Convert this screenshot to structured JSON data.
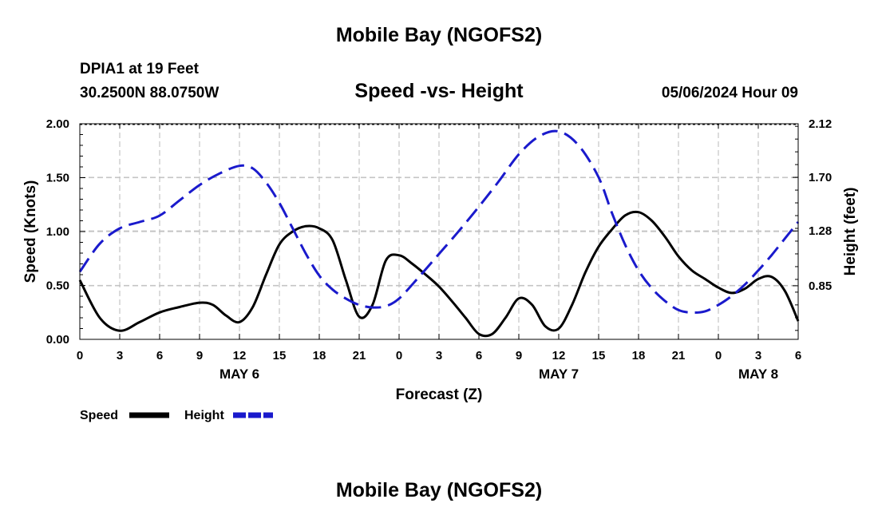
{
  "header": {
    "title": "Mobile Bay (NGOFS2)",
    "station": "DPIA1 at 19 Feet",
    "coords": "30.2500N  88.0750W",
    "subtitle": "Speed -vs- Height",
    "datetime": "05/06/2024 Hour 09"
  },
  "footer": {
    "title": "Mobile Bay (NGOFS2)"
  },
  "chart_data": {
    "type": "line",
    "title": "Speed -vs- Height",
    "xlabel": "Forecast (Z)",
    "ylabel_left": "Speed (Knots)",
    "ylabel_right": "Height (feet)",
    "xlim": [
      0,
      54
    ],
    "x_ticks": [
      0,
      3,
      6,
      9,
      12,
      15,
      18,
      21,
      24,
      27,
      30,
      33,
      36,
      39,
      42,
      45,
      48,
      51,
      54
    ],
    "x_tick_labels": [
      "0",
      "3",
      "6",
      "9",
      "12",
      "15",
      "18",
      "21",
      "0",
      "3",
      "6",
      "9",
      "12",
      "15",
      "18",
      "21",
      "0",
      "3",
      "6"
    ],
    "day_labels": [
      {
        "x": 12,
        "label": "MAY 6"
      },
      {
        "x": 36,
        "label": "MAY 7"
      },
      {
        "x": 51,
        "label": "MAY 8"
      }
    ],
    "ylim_left": [
      0,
      2
    ],
    "y_ticks_left": [
      "0.00",
      "0.50",
      "1.00",
      "1.50",
      "2.00"
    ],
    "ylim_right": [
      0.43,
      2.12
    ],
    "y_ticks_right": [
      "0.85",
      "1.28",
      "1.70",
      "2.12"
    ],
    "grid": true,
    "legend_position": "bottom-left",
    "series": [
      {
        "name": "Speed",
        "axis": "left",
        "color": "#000000",
        "style": "solid",
        "x": [
          0,
          1.5,
          3,
          4.5,
          6,
          7.5,
          9,
          10,
          11,
          12,
          13,
          14,
          15,
          16,
          17,
          18,
          19,
          20,
          21,
          22,
          23,
          24,
          25,
          26,
          27,
          28,
          29,
          30,
          31,
          32,
          33,
          34,
          35,
          36,
          37,
          38,
          39,
          40,
          41,
          42,
          43,
          44,
          45,
          46,
          47,
          48,
          49,
          50,
          51,
          52,
          53,
          54
        ],
        "y": [
          0.55,
          0.2,
          0.08,
          0.16,
          0.25,
          0.3,
          0.34,
          0.32,
          0.22,
          0.16,
          0.3,
          0.6,
          0.88,
          1.0,
          1.05,
          1.03,
          0.92,
          0.55,
          0.21,
          0.32,
          0.73,
          0.78,
          0.7,
          0.6,
          0.49,
          0.35,
          0.2,
          0.05,
          0.05,
          0.2,
          0.38,
          0.32,
          0.12,
          0.1,
          0.32,
          0.62,
          0.86,
          1.02,
          1.15,
          1.18,
          1.1,
          0.95,
          0.77,
          0.64,
          0.56,
          0.48,
          0.43,
          0.47,
          0.56,
          0.58,
          0.45,
          0.17
        ]
      },
      {
        "name": "Height",
        "axis": "right",
        "color": "#1a1acc",
        "style": "dashed",
        "x": [
          0,
          1.5,
          3,
          4.5,
          6,
          7.5,
          9,
          10.5,
          12,
          13,
          14,
          15,
          16,
          17,
          18,
          19,
          20,
          21,
          22,
          23,
          24,
          25.5,
          27,
          28.5,
          30,
          31.5,
          33,
          34.5,
          36,
          37.5,
          39,
          40,
          41,
          42,
          43,
          44,
          45,
          46,
          47,
          48,
          49,
          50,
          51,
          52,
          53,
          54
        ],
        "y": [
          0.96,
          1.18,
          1.3,
          1.35,
          1.4,
          1.52,
          1.64,
          1.73,
          1.79,
          1.77,
          1.66,
          1.5,
          1.3,
          1.1,
          0.93,
          0.82,
          0.75,
          0.7,
          0.68,
          0.69,
          0.75,
          0.92,
          1.1,
          1.28,
          1.47,
          1.67,
          1.88,
          2.02,
          2.06,
          1.95,
          1.7,
          1.42,
          1.17,
          0.97,
          0.83,
          0.73,
          0.66,
          0.64,
          0.65,
          0.7,
          0.77,
          0.86,
          0.97,
          1.09,
          1.22,
          1.35
        ]
      }
    ]
  }
}
